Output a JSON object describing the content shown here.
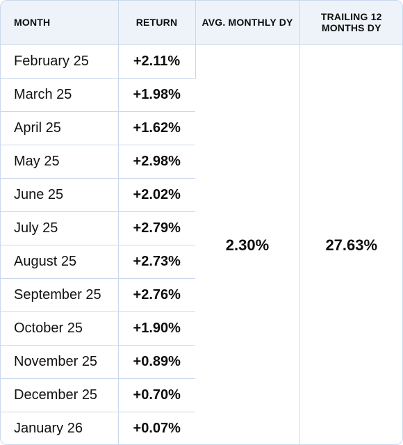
{
  "headers": {
    "month": "MONTH",
    "return": "RETURN",
    "avg_monthly_dy": "AVG. MONTHLY DY",
    "trailing_12_months_dy": "TRAILING 12 MONTHS DY"
  },
  "rows": [
    {
      "month": "February 25",
      "return": "+2.11%"
    },
    {
      "month": "March 25",
      "return": "+1.98%"
    },
    {
      "month": "April 25",
      "return": "+1.62%"
    },
    {
      "month": "May 25",
      "return": "+2.98%"
    },
    {
      "month": "June 25",
      "return": "+2.02%"
    },
    {
      "month": "July 25",
      "return": "+2.79%"
    },
    {
      "month": "August 25",
      "return": "+2.73%"
    },
    {
      "month": "September 25",
      "return": "+2.76%"
    },
    {
      "month": "October 25",
      "return": "+1.90%"
    },
    {
      "month": "November 25",
      "return": "+0.89%"
    },
    {
      "month": "December 25",
      "return": "+0.70%"
    },
    {
      "month": "January 26",
      "return": "+0.07%"
    }
  ],
  "summary": {
    "avg_monthly_dy": "2.30%",
    "trailing_12_months_dy": "27.63%"
  },
  "colors": {
    "header_background": "#eef3fa",
    "border": "#c9d8ee",
    "text": "#111111"
  }
}
